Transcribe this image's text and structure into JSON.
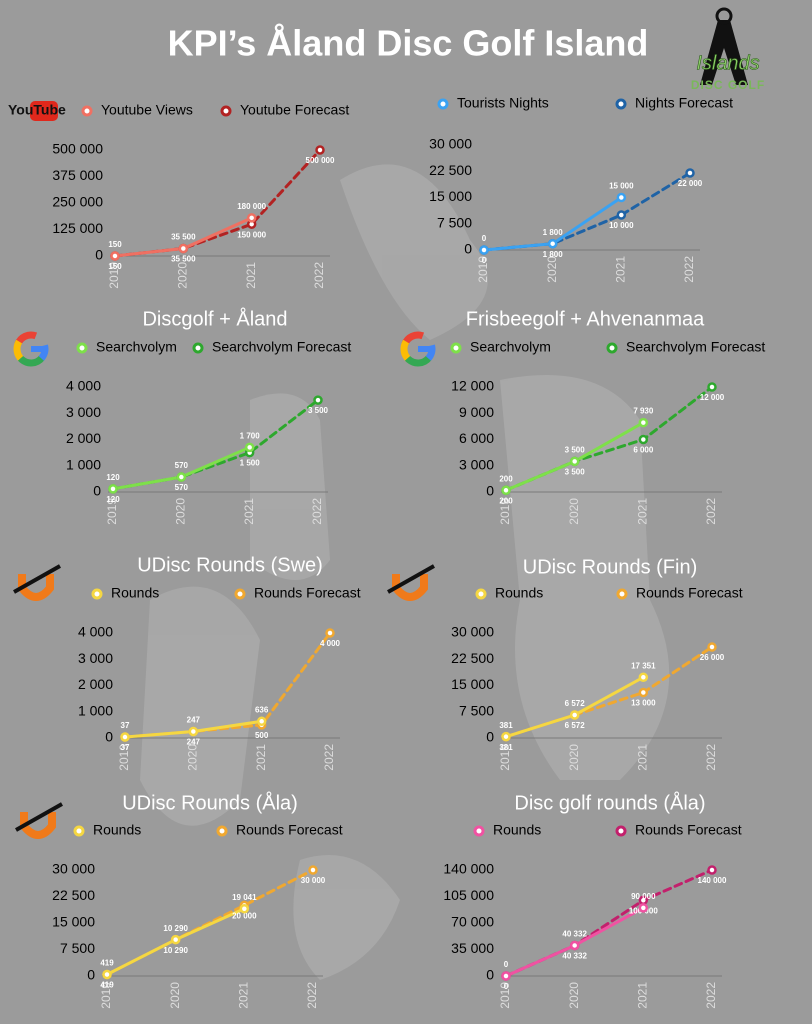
{
  "header": {
    "title": "KPI’s Åland Disc Golf Island",
    "logo": [
      "Islands",
      "DISC GOLF"
    ]
  },
  "chart_data": [
    {
      "type": "line",
      "logo": "YouTube",
      "categories": [
        "2019",
        "2020",
        "2021",
        "2022"
      ],
      "series": [
        {
          "name": "Youtube Views",
          "color": "#f07062",
          "values": [
            150,
            35500,
            180000,
            null
          ],
          "value_labels": [
            "150",
            "35 500",
            "180 000",
            null
          ]
        },
        {
          "name": "Youtube Forecast",
          "color": "#b22222",
          "values": [
            150,
            35500,
            150000,
            500000
          ],
          "value_labels": [
            "150",
            "35 500",
            "150 000",
            "500 000"
          ]
        }
      ],
      "ylim": [
        0,
        500000
      ],
      "yticks": [
        0,
        {
          "value": 125000,
          "label": "125 000"
        },
        {
          "value": 250000,
          "label": "250 000"
        },
        {
          "value": 375000,
          "label": "375 000"
        },
        {
          "value": 500000,
          "label": "500 000"
        }
      ],
      "grid": false
    },
    {
      "type": "line",
      "categories": [
        "2019",
        "2020",
        "2021",
        "2022"
      ],
      "series": [
        {
          "name": "Tourists Nights",
          "color": "#3aa2f2",
          "values": [
            0,
            1800,
            15000,
            null
          ],
          "value_labels": [
            "0",
            "1 800",
            "15 000",
            null
          ]
        },
        {
          "name": "Nights Forecast",
          "color": "#1f63a6",
          "values": [
            0,
            1800,
            10000,
            22000
          ],
          "value_labels": [
            "0",
            "1 800",
            "10 000",
            "22 000"
          ]
        }
      ],
      "ylim": [
        0,
        30000
      ],
      "yticks": [
        0,
        {
          "value": 7500,
          "label": "7 500"
        },
        {
          "value": 15000,
          "label": "15 000"
        },
        {
          "value": 22500,
          "label": "22 500"
        },
        {
          "value": 30000,
          "label": "30 000"
        }
      ],
      "grid": false
    },
    {
      "type": "line",
      "title": "Discgolf +  Åland",
      "categories": [
        "2019",
        "2020",
        "2021",
        "2022"
      ],
      "series": [
        {
          "name": "Searchvolym",
          "color": "#7ee04a",
          "values": [
            120,
            570,
            1700,
            null
          ],
          "value_labels": [
            "120",
            "570",
            "1 700",
            null
          ]
        },
        {
          "name": "Searchvolym Forecast",
          "color": "#2ea82e",
          "values": [
            120,
            570,
            1500,
            3500
          ],
          "value_labels": [
            "120",
            "570",
            "1 500",
            "3 500"
          ]
        }
      ],
      "ylim": [
        0,
        4000
      ],
      "yticks": [
        0,
        {
          "value": 1000,
          "label": "1 000"
        },
        {
          "value": 2000,
          "label": "2 000"
        },
        {
          "value": 3000,
          "label": "3 000"
        },
        {
          "value": 4000,
          "label": "4 000"
        }
      ],
      "grid": false
    },
    {
      "type": "line",
      "title": "Frisbeegolf + Ahvenanmaa",
      "categories": [
        "2019",
        "2020",
        "2021",
        "2022"
      ],
      "series": [
        {
          "name": "Searchvolym",
          "color": "#7ee04a",
          "values": [
            200,
            3500,
            7930,
            null
          ],
          "value_labels": [
            "200",
            "3 500",
            "7 930",
            null
          ]
        },
        {
          "name": "Searchvolym Forecast",
          "color": "#2ea82e",
          "values": [
            200,
            3500,
            6000,
            12000
          ],
          "value_labels": [
            "200",
            "3 500",
            "6 000",
            "12 000"
          ]
        }
      ],
      "ylim": [
        0,
        12000
      ],
      "yticks": [
        0,
        {
          "value": 3000,
          "label": "3 000"
        },
        {
          "value": 6000,
          "label": "6 000"
        },
        {
          "value": 9000,
          "label": "9 000"
        },
        {
          "value": 12000,
          "label": "12 000"
        }
      ],
      "grid": false
    },
    {
      "type": "line",
      "title": "UDisc Rounds (Swe)",
      "categories": [
        "2019",
        "2020",
        "2021",
        "2022"
      ],
      "series": [
        {
          "name": "Rounds",
          "color": "#f5d742",
          "values": [
            37,
            247,
            636,
            null
          ],
          "value_labels": [
            "37",
            "247",
            "636",
            null
          ]
        },
        {
          "name": "Rounds Forecast",
          "color": "#f0a830",
          "values": [
            37,
            247,
            500,
            4000
          ],
          "value_labels": [
            "37",
            "247",
            "500",
            "4 000"
          ]
        }
      ],
      "ylim": [
        0,
        4000
      ],
      "yticks": [
        0,
        {
          "value": 1000,
          "label": "1 000"
        },
        {
          "value": 2000,
          "label": "2 000"
        },
        {
          "value": 3000,
          "label": "3 000"
        },
        {
          "value": 4000,
          "label": "4 000"
        }
      ],
      "grid": false
    },
    {
      "type": "line",
      "title": "UDisc Rounds (Fin)",
      "categories": [
        "2019",
        "2020",
        "2021",
        "2022"
      ],
      "series": [
        {
          "name": "Rounds",
          "color": "#f5d742",
          "values": [
            381,
            6572,
            17351,
            null
          ],
          "value_labels": [
            "381",
            "6 572",
            "17 351",
            null
          ]
        },
        {
          "name": "Rounds Forecast",
          "color": "#f0a830",
          "values": [
            381,
            6572,
            13000,
            26000
          ],
          "value_labels": [
            "381",
            "6 572",
            "13 000",
            "26 000"
          ]
        }
      ],
      "ylim": [
        0,
        30000
      ],
      "yticks": [
        0,
        {
          "value": 7500,
          "label": "7 500"
        },
        {
          "value": 15000,
          "label": "15 000"
        },
        {
          "value": 22500,
          "label": "22 500"
        },
        {
          "value": 30000,
          "label": "30 000"
        }
      ],
      "grid": false
    },
    {
      "type": "line",
      "title": "UDisc Rounds (Åla)",
      "categories": [
        "2019",
        "2020",
        "2021",
        "2022"
      ],
      "series": [
        {
          "name": "Rounds",
          "color": "#f5d742",
          "values": [
            419,
            10290,
            19041,
            null
          ],
          "value_labels": [
            "419",
            "10 290",
            "19 041",
            null
          ]
        },
        {
          "name": "Rounds Forecast",
          "color": "#f0a830",
          "values": [
            419,
            10290,
            20000,
            30000
          ],
          "value_labels": [
            "419",
            "10 290",
            "20 000",
            "30 000"
          ]
        }
      ],
      "ylim": [
        0,
        30000
      ],
      "yticks": [
        0,
        {
          "value": 7500,
          "label": "7 500"
        },
        {
          "value": 15000,
          "label": "15 000"
        },
        {
          "value": 22500,
          "label": "22 500"
        },
        {
          "value": 30000,
          "label": "30 000"
        }
      ],
      "grid": false
    },
    {
      "type": "line",
      "title": "Disc golf rounds (Åla)",
      "categories": [
        "2019",
        "2020",
        "2021",
        "2022"
      ],
      "series": [
        {
          "name": "Rounds",
          "color": "#f052a2",
          "values": [
            0,
            40332,
            90000,
            null
          ],
          "value_labels": [
            "0",
            "40 332",
            "90 000",
            null
          ]
        },
        {
          "name": "Rounds Forecast",
          "color": "#c2206c",
          "values": [
            0,
            40332,
            100000,
            140000
          ],
          "value_labels": [
            "0",
            "40 332",
            "100 000",
            "140 000"
          ]
        }
      ],
      "ylim": [
        0,
        140000
      ],
      "yticks": [
        0,
        {
          "value": 35000,
          "label": "35 000"
        },
        {
          "value": 70000,
          "label": "70 000"
        },
        {
          "value": 105000,
          "label": "105 000"
        },
        {
          "value": 140000,
          "label": "140 000"
        }
      ],
      "grid": false
    }
  ]
}
